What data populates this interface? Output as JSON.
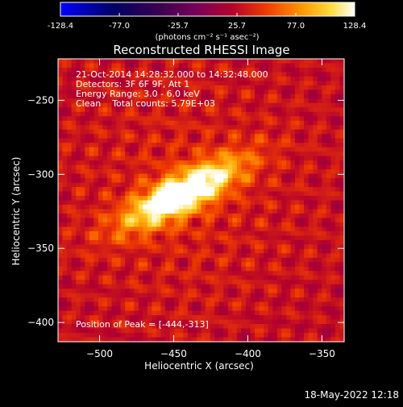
{
  "colorbar": {
    "tick_labels": [
      "-128.4",
      "-77.0",
      "-25.7",
      "25.7",
      "77.0",
      "128.4"
    ],
    "range": [
      -128.4,
      128.4
    ],
    "unit_label": "(photons cm⁻² s⁻¹ asec⁻²)"
  },
  "plot": {
    "title": "Reconstructed RHESSI Image",
    "annotations": [
      "21-Oct-2014 14:28:32.000 to 14:32:48.000",
      "Detectors: 3F 6F 9F, Att 1",
      "Energy Range: 3.0 - 6.0 keV",
      "Clean    Total counts: 5.79E+03"
    ],
    "peak_label": "Position of Peak = [-444,-313]",
    "footer_date": "18-May-2022 12:18"
  },
  "chart_data": {
    "type": "heatmap",
    "title": "Reconstructed RHESSI Image",
    "xlabel": "Heliocentric X (arcsec)",
    "ylabel": "Heliocentric Y (arcsec)",
    "xlim": [
      -528,
      -335
    ],
    "ylim": [
      -413,
      -222
    ],
    "x_ticks": [
      -500,
      -450,
      -400,
      -350
    ],
    "y_ticks": [
      -250,
      -300,
      -350,
      -400
    ],
    "x_tick_labels": [
      "−500",
      "−450",
      "−400",
      "−350"
    ],
    "y_tick_labels": [
      "−250",
      "−300",
      "−350",
      "−400"
    ],
    "value_unit": "photons cm^-2 s^-1 asec^-2",
    "value_range": [
      -128.4,
      128.4
    ],
    "peak_position": [
      -444,
      -313
    ],
    "peak_value": 128.4,
    "colors": {
      "background": "#000000",
      "colormap": [
        "#0000ff",
        "#000064",
        "#3c0050",
        "#78005a",
        "#b4002d",
        "#f03c00",
        "#ff9600",
        "#ffdc3c",
        "#ffffff"
      ]
    }
  }
}
